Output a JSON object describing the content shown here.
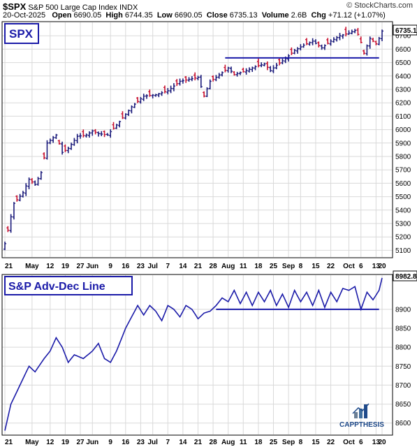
{
  "header": {
    "symbol": "$SPX",
    "name": "S&P 500 Large Cap Index",
    "exchange": "INDX",
    "date": "20-Oct-2025",
    "open_label": "Open",
    "open": "6690.05",
    "high_label": "High",
    "high": "6744.35",
    "low_label": "Low",
    "low": "6690.05",
    "close_label": "Close",
    "close": "6735.13",
    "volume_label": "Volume",
    "volume": "2.6B",
    "chg_label": "Chg",
    "chg": "+71.12 (+1.07%)",
    "credit": "© StockCharts.com"
  },
  "colors": {
    "up": "#1a1a7a",
    "down": "#c8102e",
    "line": "#1a1aa8",
    "grid": "#d9d9d9",
    "support": "#1a1aa8"
  },
  "x_labels": [
    "21",
    "May",
    "12",
    "19",
    "27",
    "Jun",
    "9",
    "16",
    "23",
    "Jul",
    "7",
    "14",
    "21",
    "28",
    "Aug",
    "11",
    "18",
    "25",
    "Sep",
    "8",
    "15",
    "22",
    "Oct",
    "6",
    "13",
    "20"
  ],
  "chart_data": [
    {
      "type": "ohlc",
      "title": "SPX",
      "ylim": [
        5050,
        6800
      ],
      "yticks": [
        5100,
        5200,
        5300,
        5400,
        5500,
        5600,
        5700,
        5800,
        5900,
        6000,
        6100,
        6200,
        6300,
        6400,
        6500,
        6600,
        6700
      ],
      "last_value_label": "6735.13",
      "support_level": 6535,
      "close_anchors": [
        [
          0,
          5150
        ],
        [
          3,
          5450
        ],
        [
          6,
          5530
        ],
        [
          8,
          5630
        ],
        [
          10,
          5590
        ],
        [
          12,
          5680
        ],
        [
          14,
          5900
        ],
        [
          17,
          5960
        ],
        [
          19,
          5830
        ],
        [
          21,
          5860
        ],
        [
          24,
          5950
        ],
        [
          27,
          5960
        ],
        [
          29,
          5990
        ],
        [
          31,
          5970
        ],
        [
          34,
          5960
        ],
        [
          38,
          6060
        ],
        [
          42,
          6170
        ],
        [
          46,
          6250
        ],
        [
          50,
          6260
        ],
        [
          54,
          6290
        ],
        [
          58,
          6360
        ],
        [
          62,
          6380
        ],
        [
          64,
          6390
        ],
        [
          66,
          6250
        ],
        [
          68,
          6360
        ],
        [
          70,
          6390
        ],
        [
          74,
          6460
        ],
        [
          76,
          6410
        ],
        [
          80,
          6440
        ],
        [
          83,
          6470
        ],
        [
          86,
          6490
        ],
        [
          88,
          6440
        ],
        [
          90,
          6480
        ],
        [
          93,
          6530
        ],
        [
          96,
          6590
        ],
        [
          99,
          6630
        ],
        [
          102,
          6660
        ],
        [
          105,
          6610
        ],
        [
          108,
          6660
        ],
        [
          111,
          6700
        ],
        [
          114,
          6720
        ],
        [
          116,
          6740
        ],
        [
          117,
          6710
        ],
        [
          118,
          6650
        ],
        [
          119,
          6570
        ],
        [
          121,
          6680
        ],
        [
          123,
          6640
        ],
        [
          124,
          6680
        ],
        [
          125,
          6735.13
        ]
      ],
      "down_days": [
        1,
        4,
        9,
        13,
        18,
        20,
        26,
        30,
        33,
        36,
        39,
        44,
        48,
        53,
        57,
        60,
        63,
        66,
        69,
        73,
        76,
        79,
        84,
        87,
        91,
        95,
        100,
        104,
        107,
        113,
        117,
        118,
        119,
        122,
        123
      ]
    },
    {
      "type": "line",
      "title": "S&P Adv-Dec Line",
      "ylim": [
        8570,
        8990
      ],
      "yticks": [
        8600,
        8650,
        8700,
        8750,
        8800,
        8850,
        8900
      ],
      "last_value_label": "8982.8",
      "support_level": 8900,
      "anchors": [
        [
          0,
          8580
        ],
        [
          2,
          8650
        ],
        [
          5,
          8700
        ],
        [
          8,
          8750
        ],
        [
          10,
          8735
        ],
        [
          13,
          8770
        ],
        [
          15,
          8790
        ],
        [
          17,
          8825
        ],
        [
          19,
          8800
        ],
        [
          21,
          8760
        ],
        [
          23,
          8780
        ],
        [
          26,
          8770
        ],
        [
          29,
          8790
        ],
        [
          31,
          8810
        ],
        [
          33,
          8770
        ],
        [
          35,
          8760
        ],
        [
          37,
          8790
        ],
        [
          40,
          8850
        ],
        [
          42,
          8880
        ],
        [
          44,
          8910
        ],
        [
          46,
          8885
        ],
        [
          48,
          8910
        ],
        [
          50,
          8895
        ],
        [
          52,
          8870
        ],
        [
          54,
          8910
        ],
        [
          56,
          8900
        ],
        [
          58,
          8880
        ],
        [
          60,
          8910
        ],
        [
          62,
          8900
        ],
        [
          64,
          8875
        ],
        [
          66,
          8890
        ],
        [
          68,
          8895
        ],
        [
          70,
          8910
        ],
        [
          72,
          8930
        ],
        [
          74,
          8920
        ],
        [
          76,
          8950
        ],
        [
          78,
          8915
        ],
        [
          80,
          8945
        ],
        [
          82,
          8910
        ],
        [
          84,
          8945
        ],
        [
          86,
          8920
        ],
        [
          88,
          8950
        ],
        [
          90,
          8910
        ],
        [
          92,
          8940
        ],
        [
          94,
          8905
        ],
        [
          96,
          8950
        ],
        [
          98,
          8920
        ],
        [
          100,
          8945
        ],
        [
          102,
          8910
        ],
        [
          104,
          8950
        ],
        [
          106,
          8905
        ],
        [
          108,
          8945
        ],
        [
          110,
          8920
        ],
        [
          112,
          8955
        ],
        [
          114,
          8950
        ],
        [
          116,
          8960
        ],
        [
          118,
          8900
        ],
        [
          120,
          8945
        ],
        [
          122,
          8925
        ],
        [
          124,
          8950
        ],
        [
          125,
          8982.8
        ]
      ]
    }
  ],
  "logo": {
    "text": "CAPPTHESIS",
    "icon": "bar-chart-logo-icon"
  }
}
